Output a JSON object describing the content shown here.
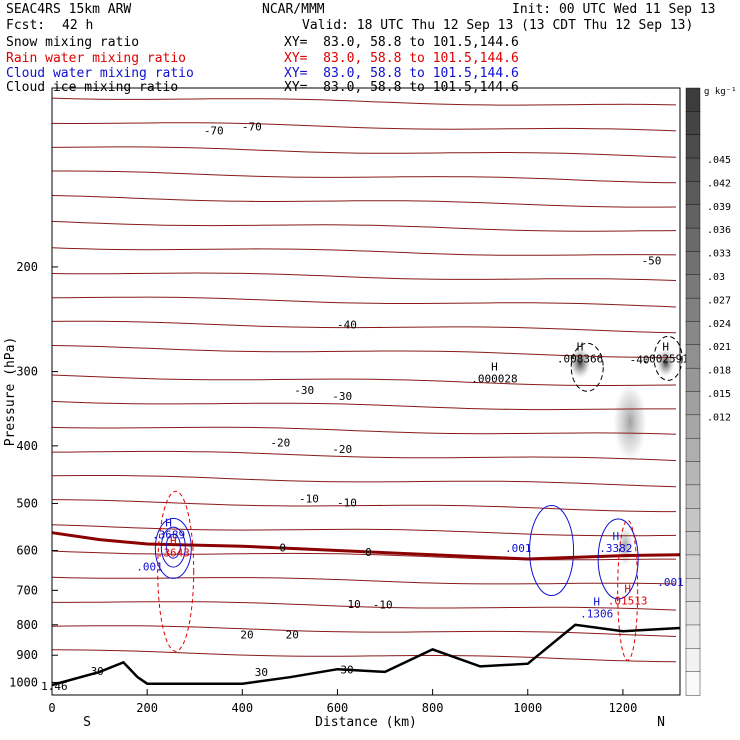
{
  "header": {
    "model": "SEAC4RS 15km ARW",
    "org": "NCAR/MMM",
    "init": "Init: 00 UTC Wed 11 Sep 13",
    "fcst_label": "Fcst:",
    "fcst_value": "42 h",
    "valid": "Valid: 18 UTC Thu 12 Sep 13 (13 CDT Thu 12 Sep 13)"
  },
  "fields": [
    {
      "name": "Snow mixing ratio",
      "xy": "XY=  83.0, 58.8 to 101.5,144.6",
      "color": "#000000"
    },
    {
      "name": "Rain water mixing ratio",
      "xy": "XY=  83.0, 58.8 to 101.5,144.6",
      "color": "#e00000"
    },
    {
      "name": "Cloud water mixing ratio",
      "xy": "XY=  83.0, 58.8 to 101.5,144.6",
      "color": "#1010d0"
    },
    {
      "name": "Cloud ice mixing ratio",
      "xy": "XY=  83.0, 58.8 to 101.5,144.6",
      "color": "#000000"
    }
  ],
  "chart_data": {
    "type": "contour cross-section",
    "ylabel": "Pressure (hPa)",
    "xlabel": "Distance (km)",
    "x_ticks": [
      0,
      200,
      400,
      600,
      800,
      1000,
      1200
    ],
    "y_ticks": [
      200,
      300,
      400,
      500,
      600,
      700,
      800,
      900,
      1000
    ],
    "x_range": [
      0,
      1320
    ],
    "y_range": [
      100,
      1050
    ],
    "y_scale": "log-pressure",
    "x_end_labels": {
      "left": "S",
      "right": "N"
    },
    "colorbar": {
      "unit": "g kg⁻¹",
      "labels": [
        ".045",
        ".042",
        ".039",
        ".036",
        ".033",
        ".03",
        ".027",
        ".024",
        ".021",
        ".018",
        ".015",
        ".012"
      ]
    },
    "temperature_contour_labels": [
      {
        "text": "-70",
        "x": 340,
        "p": 118
      },
      {
        "text": "-70",
        "x": 420,
        "p": 116
      },
      {
        "text": "-50",
        "x": 1260,
        "p": 195
      },
      {
        "text": "-40",
        "x": 620,
        "p": 250
      },
      {
        "text": "-40",
        "x": 1235,
        "p": 286
      },
      {
        "text": "-30",
        "x": 530,
        "p": 322
      },
      {
        "text": "-30",
        "x": 610,
        "p": 330
      },
      {
        "text": "-20",
        "x": 480,
        "p": 395
      },
      {
        "text": "-20",
        "x": 610,
        "p": 405
      },
      {
        "text": "-10",
        "x": 540,
        "p": 490
      },
      {
        "text": "-10",
        "x": 620,
        "p": 498
      },
      {
        "text": "0",
        "x": 485,
        "p": 593
      },
      {
        "text": "0",
        "x": 665,
        "p": 603
      },
      {
        "text": "10",
        "x": 635,
        "p": 738
      },
      {
        "text": "-10",
        "x": 695,
        "p": 739
      },
      {
        "text": "20",
        "x": 410,
        "p": 830
      },
      {
        "text": "20",
        "x": 505,
        "p": 830
      },
      {
        "text": "30",
        "x": 95,
        "p": 957
      },
      {
        "text": "30",
        "x": 440,
        "p": 960
      },
      {
        "text": "30",
        "x": 620,
        "p": 952
      },
      {
        "text": "1.46",
        "x": 5,
        "p": 1015
      }
    ],
    "field_maxima": [
      {
        "field": "Snow mixing ratio",
        "mark": "H",
        "value": ".008366",
        "x": 1110,
        "p": 283
      },
      {
        "field": "Snow mixing ratio",
        "mark": "H",
        "value": ".002591",
        "x": 1290,
        "p": 283
      },
      {
        "field": "Cloud ice mixing ratio",
        "mark": "H",
        "value": ".000028",
        "x": 930,
        "p": 306
      },
      {
        "field": "Cloud water mixing ratio",
        "mark": "H",
        "value": ".3689",
        "x": 245,
        "p": 560
      },
      {
        "field": "Rain water mixing ratio",
        "mark": "H",
        "value": ".3643",
        "x": 255,
        "p": 600
      },
      {
        "field": "Cloud water mixing ratio",
        "mark": "",
        "value": ".001",
        "x": 205,
        "p": 633
      },
      {
        "field": "Cloud water mixing ratio",
        "mark": "",
        "value": ".001",
        "x": 980,
        "p": 590
      },
      {
        "field": "Cloud water mixing ratio",
        "mark": "H",
        "value": ".3382",
        "x": 1185,
        "p": 590
      },
      {
        "field": "Cloud water mixing ratio",
        "mark": "",
        "value": ".001",
        "x": 1300,
        "p": 672
      },
      {
        "field": "Rain water mixing ratio",
        "mark": "H",
        "value": ".01513",
        "x": 1210,
        "p": 722
      },
      {
        "field": "Cloud water mixing ratio",
        "mark": "H",
        "value": ".1306",
        "x": 1145,
        "p": 760
      }
    ],
    "freezing_level_p": [
      [
        0,
        560
      ],
      [
        100,
        575
      ],
      [
        200,
        585
      ],
      [
        400,
        590
      ],
      [
        600,
        600
      ],
      [
        800,
        610
      ],
      [
        1000,
        620
      ],
      [
        1200,
        612
      ],
      [
        1320,
        610
      ]
    ],
    "terrain_p": [
      [
        0,
        1010
      ],
      [
        100,
        960
      ],
      [
        150,
        925
      ],
      [
        180,
        980
      ],
      [
        200,
        1005
      ],
      [
        400,
        1005
      ],
      [
        500,
        980
      ],
      [
        600,
        950
      ],
      [
        700,
        960
      ],
      [
        800,
        880
      ],
      [
        900,
        940
      ],
      [
        1000,
        930
      ],
      [
        1100,
        800
      ],
      [
        1200,
        820
      ],
      [
        1320,
        810
      ]
    ]
  }
}
